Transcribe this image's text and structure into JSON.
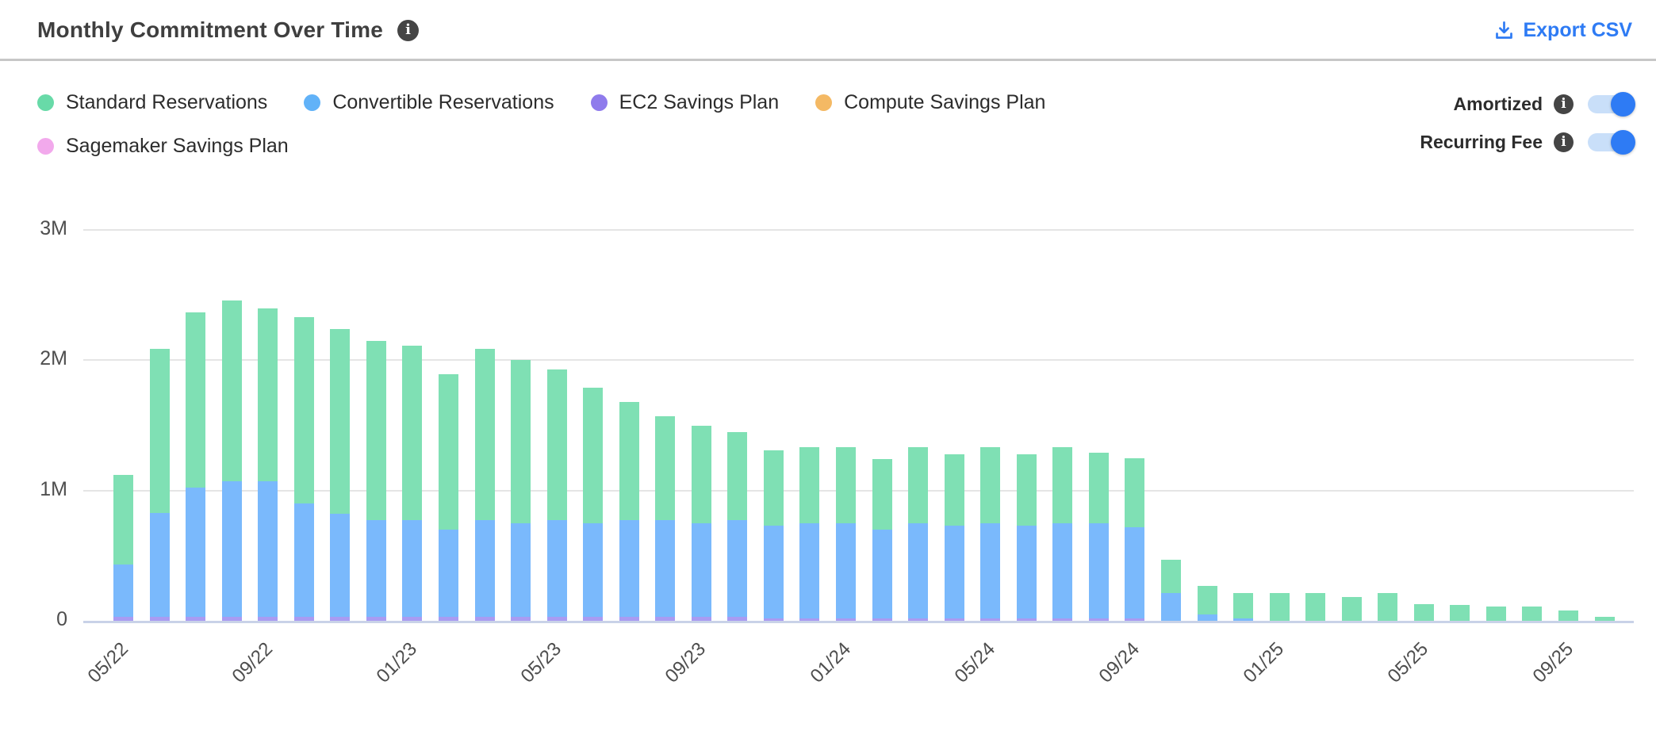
{
  "header": {
    "title": "Monthly Commitment Over Time",
    "info_glyph": "i",
    "export_label": "Export CSV"
  },
  "toggles": [
    {
      "label": "Amortized",
      "state": "on"
    },
    {
      "label": "Recurring Fee",
      "state": "on"
    }
  ],
  "colors": {
    "accent_blue": "#2e7bf4",
    "toggle_track": "#c9dff9",
    "divider": "#c7c7c7",
    "gridline": "#e5e5e5",
    "baseline_axis": "#c9d2e8",
    "title_text": "#3f3f3f",
    "axis_text": "#4e4e4e",
    "info_icon_bg": "#454545"
  },
  "chart_data": {
    "type": "bar",
    "variant": "stacked",
    "title": "Monthly Commitment Over Time",
    "xlabel": "",
    "ylabel": "",
    "values_unit": "millions",
    "ylim": [
      0,
      3000000
    ],
    "y_ticks": [
      "0",
      "1M",
      "2M",
      "3M"
    ],
    "grid": true,
    "legend_position": "top-left",
    "x_tick_every": 4,
    "x_tick_labels": [
      "05/22",
      "09/22",
      "01/23",
      "05/23",
      "09/23",
      "01/24",
      "05/24",
      "09/24",
      "01/25",
      "05/25",
      "09/25"
    ],
    "categories": [
      "05/22",
      "06/22",
      "07/22",
      "08/22",
      "09/22",
      "10/22",
      "11/22",
      "12/22",
      "01/23",
      "02/23",
      "03/23",
      "04/23",
      "05/23",
      "06/23",
      "07/23",
      "08/23",
      "09/23",
      "10/23",
      "11/23",
      "12/23",
      "01/24",
      "02/24",
      "03/24",
      "04/24",
      "05/24",
      "06/24",
      "07/24",
      "08/24",
      "09/24",
      "10/24",
      "11/24",
      "12/24",
      "01/25",
      "02/25",
      "03/25",
      "04/25",
      "05/25",
      "06/25",
      "07/25",
      "08/25",
      "09/25",
      "10/25"
    ],
    "stack_order_bottom_up": [
      "EC2 Savings Plan",
      "Compute Savings Plan",
      "Sagemaker Savings Plan",
      "Convertible Reservations",
      "Standard Reservations"
    ],
    "series": [
      {
        "name": "Standard Reservations",
        "bar_color": "#7fe0b4",
        "legend_color": "#68daa8",
        "values": [
          0.69,
          1.26,
          1.35,
          1.39,
          1.33,
          1.43,
          1.42,
          1.38,
          1.34,
          1.19,
          1.32,
          1.25,
          1.16,
          1.04,
          0.91,
          0.8,
          0.75,
          0.68,
          0.58,
          0.58,
          0.58,
          0.54,
          0.58,
          0.55,
          0.58,
          0.55,
          0.58,
          0.54,
          0.53,
          0.26,
          0.22,
          0.19,
          0.21,
          0.21,
          0.18,
          0.21,
          0.13,
          0.12,
          0.11,
          0.11,
          0.08,
          0.03
        ]
      },
      {
        "name": "Convertible Reservations",
        "bar_color": "#7ab9fc",
        "legend_color": "#61b2f8",
        "values": [
          0.4,
          0.8,
          0.99,
          1.04,
          1.04,
          0.87,
          0.79,
          0.74,
          0.74,
          0.67,
          0.74,
          0.72,
          0.74,
          0.72,
          0.74,
          0.74,
          0.72,
          0.74,
          0.71,
          0.73,
          0.73,
          0.68,
          0.73,
          0.71,
          0.73,
          0.71,
          0.73,
          0.73,
          0.7,
          0.21,
          0.05,
          0.02,
          0,
          0,
          0,
          0,
          0,
          0,
          0,
          0,
          0,
          0
        ]
      },
      {
        "name": "EC2 Savings Plan",
        "bar_color": "#a99bf2",
        "legend_color": "#8f7bec",
        "values": [
          0.03,
          0.03,
          0.03,
          0.03,
          0.03,
          0.03,
          0.03,
          0.03,
          0.03,
          0.03,
          0.03,
          0.03,
          0.03,
          0.03,
          0.03,
          0.03,
          0.03,
          0.03,
          0.02,
          0.02,
          0.02,
          0.02,
          0.02,
          0.02,
          0.02,
          0.02,
          0.02,
          0.02,
          0.02,
          0,
          0,
          0,
          0,
          0,
          0,
          0,
          0,
          0,
          0,
          0,
          0,
          0
        ]
      },
      {
        "name": "Compute Savings Plan",
        "bar_color": "#f4b964",
        "legend_color": "#f4b964",
        "values": [
          0,
          0,
          0,
          0,
          0,
          0,
          0,
          0,
          0,
          0,
          0,
          0,
          0,
          0,
          0,
          0,
          0,
          0,
          0,
          0,
          0,
          0,
          0,
          0,
          0,
          0,
          0,
          0,
          0,
          0,
          0,
          0,
          0,
          0,
          0,
          0,
          0,
          0,
          0,
          0,
          0,
          0
        ]
      },
      {
        "name": "Sagemaker Savings Plan",
        "bar_color": "#f2a9ec",
        "legend_color": "#f2a9ec",
        "values": [
          0,
          0,
          0,
          0,
          0,
          0,
          0,
          0,
          0,
          0,
          0,
          0,
          0,
          0,
          0,
          0,
          0,
          0,
          0,
          0,
          0,
          0,
          0,
          0,
          0,
          0,
          0,
          0,
          0,
          0,
          0,
          0,
          0,
          0,
          0,
          0,
          0,
          0,
          0,
          0,
          0,
          0
        ]
      }
    ]
  }
}
